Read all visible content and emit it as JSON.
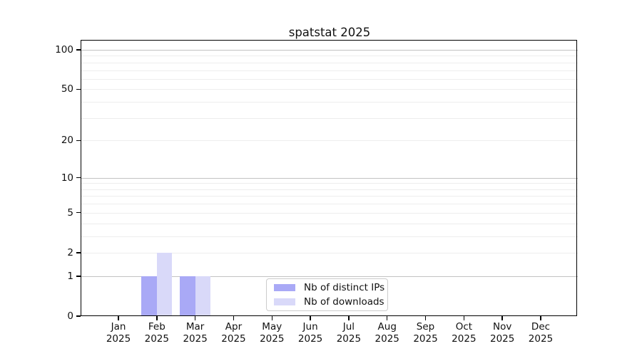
{
  "chart_data": {
    "type": "bar",
    "title": "spatstat 2025",
    "xlabel": "",
    "ylabel": "",
    "categories": [
      "Jan 2025",
      "Feb 2025",
      "Mar 2025",
      "Apr 2025",
      "May 2025",
      "Jun 2025",
      "Jul 2025",
      "Aug 2025",
      "Sep 2025",
      "Oct 2025",
      "Nov 2025",
      "Dec 2025"
    ],
    "series": [
      {
        "name": "Nb of distinct IPs",
        "color": "#a9a9f6",
        "values": [
          0,
          1,
          1,
          0,
          0,
          0,
          0,
          0,
          0,
          0,
          0,
          0
        ]
      },
      {
        "name": "Nb of downloads",
        "color": "#d9d9f9",
        "values": [
          0,
          2,
          1,
          0,
          0,
          0,
          0,
          0,
          0,
          0,
          0,
          0
        ]
      }
    ],
    "y_axis": {
      "scale": "log10(1+y)",
      "tick_values": [
        0,
        1,
        2,
        5,
        10,
        20,
        50,
        100
      ],
      "major_gridlines": [
        1,
        10,
        100
      ],
      "minor_gridlines": [
        2,
        3,
        4,
        5,
        6,
        7,
        8,
        9,
        20,
        30,
        40,
        50,
        60,
        70,
        80,
        90
      ],
      "range": [
        0,
        117
      ]
    },
    "grid": "horizontal",
    "legend_position": "inside-bottom-center"
  },
  "colors": {
    "major_gridline": "#c2c2c2",
    "minor_gridline": "#ededed",
    "axis": "#000000",
    "legend_border": "#cccccc",
    "background": "#ffffff"
  }
}
